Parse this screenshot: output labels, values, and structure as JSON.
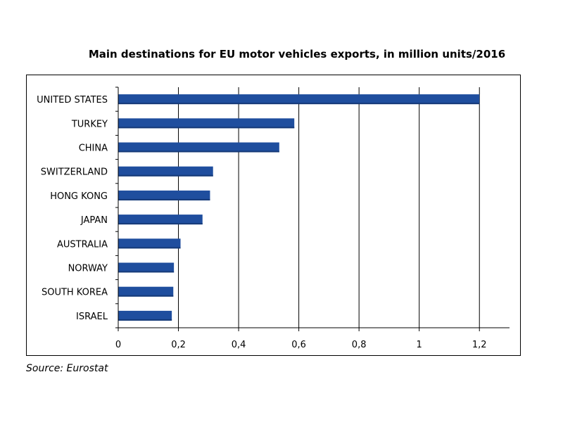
{
  "chart_data": {
    "type": "bar",
    "orientation": "horizontal",
    "title": "Main destinations for EU motor vehicles exports, in million units/2016",
    "categories": [
      "UNITED STATES",
      "TURKEY",
      "CHINA",
      "SWITZERLAND",
      "HONG KONG",
      "JAPAN",
      "AUSTRALIA",
      "NORWAY",
      "SOUTH KOREA",
      "ISRAEL"
    ],
    "values": [
      1.2,
      0.585,
      0.535,
      0.315,
      0.305,
      0.28,
      0.207,
      0.185,
      0.183,
      0.178
    ],
    "xlim": [
      0,
      1.3
    ],
    "xticks": [
      0,
      0.2,
      0.4,
      0.6,
      0.8,
      1,
      1.2
    ],
    "xtick_labels": [
      "0",
      "0,2",
      "0,4",
      "0,6",
      "0,8",
      "1",
      "1,2"
    ],
    "xlabel": "",
    "ylabel": "",
    "grid": "vertical",
    "legend": "none",
    "bar_color": "#1F4E9E"
  },
  "source": "Source: Eurostat"
}
